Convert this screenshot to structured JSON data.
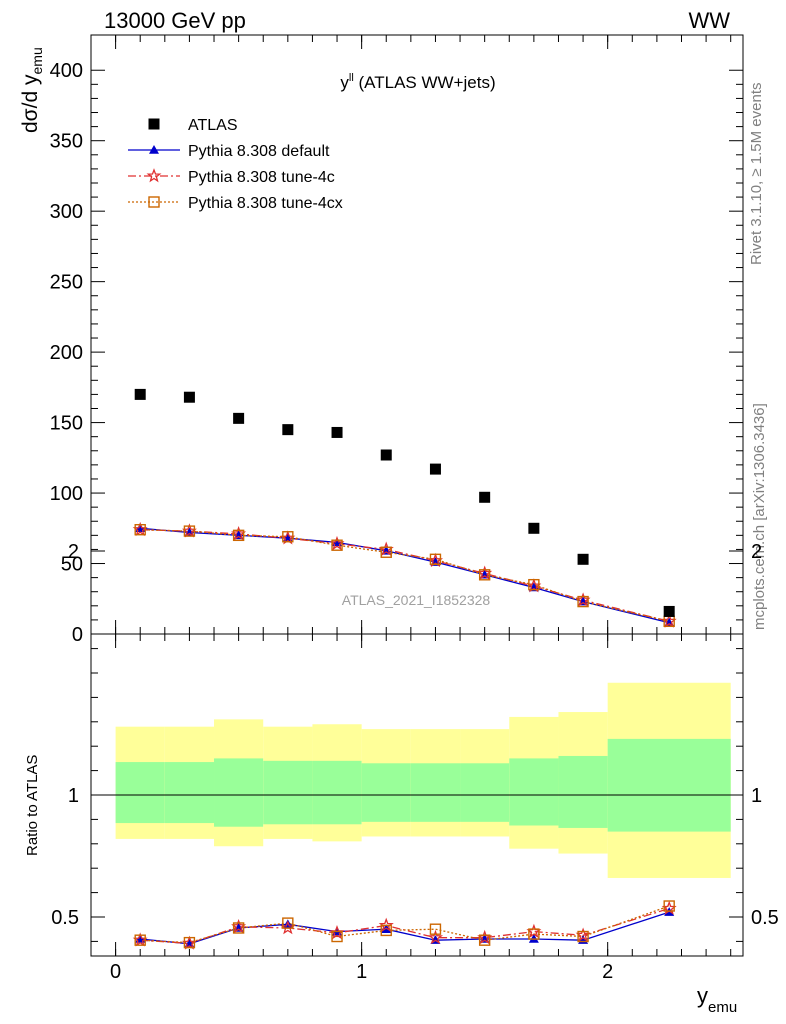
{
  "header": {
    "left": "13000 GeV pp",
    "right": "WW"
  },
  "side": {
    "rivet": "Rivet 3.1.10, ≥ 1.5M events",
    "mcplots": "mcplots.cern.ch [arXiv:1306.3436]"
  },
  "colors": {
    "atlas": "#000000",
    "default": "#0000cc",
    "tune4c": "#e03030",
    "tune4cx": "#cc6600",
    "band_inner": "#99ff99",
    "band_outer": "#ffff99"
  },
  "chart_data": [
    {
      "type": "scatter",
      "title_main": "y",
      "title_sup": "ll",
      "title_rest": " (ATLAS WW+jets)",
      "ylabel_main": "dσ/d y",
      "ylabel_sub": "emu",
      "watermark": "ATLAS_2021_I1852328",
      "xlim": [
        -0.1,
        2.55
      ],
      "ylim": [
        0,
        425
      ],
      "yticks": [
        0,
        50,
        100,
        150,
        200,
        250,
        300,
        350,
        400
      ],
      "bin_edges": [
        0,
        0.2,
        0.4,
        0.6,
        0.8,
        1.0,
        1.2,
        1.4,
        1.6,
        1.8,
        2.0,
        2.5
      ],
      "x": [
        0.1,
        0.3,
        0.5,
        0.7,
        0.9,
        1.1,
        1.3,
        1.5,
        1.7,
        1.9,
        2.25
      ],
      "legend": [
        "ATLAS",
        "Pythia 8.308 default",
        "Pythia 8.308 tune-4c",
        "Pythia 8.308 tune-4cx"
      ],
      "legend_position": "top-left",
      "series": [
        {
          "name": "ATLAS",
          "values": [
            170,
            168,
            153,
            145,
            143,
            127,
            117,
            97,
            75,
            53,
            16
          ]
        },
        {
          "name": "Pythia 8.308 default",
          "values": [
            75,
            72,
            70,
            68,
            65,
            59,
            51,
            42,
            33,
            23,
            8
          ]
        },
        {
          "name": "Pythia 8.308 tune-4c",
          "values": [
            74,
            73,
            71,
            68,
            64,
            60,
            52,
            43,
            34,
            24,
            9
          ]
        },
        {
          "name": "Pythia 8.308 tune-4cx",
          "values": [
            74,
            73,
            70,
            69,
            63,
            58,
            53,
            42,
            35,
            23,
            9
          ]
        }
      ]
    },
    {
      "type": "line",
      "ylabel": "Ratio to ATLAS",
      "xlabel_main": "y",
      "xlabel_sub": "emu",
      "xlim": [
        -0.1,
        2.55
      ],
      "ylim": [
        0.33,
        2.3
      ],
      "xticks": [
        "0",
        "1",
        "2"
      ],
      "xtick_values": [
        0,
        1,
        2
      ],
      "yticks": [
        "0.5",
        "1",
        "2"
      ],
      "ytick_values": [
        0.5,
        1,
        2
      ],
      "band_inner": [
        [
          0.885,
          1.135
        ],
        [
          0.885,
          1.135
        ],
        [
          0.87,
          1.15
        ],
        [
          0.88,
          1.14
        ],
        [
          0.88,
          1.14
        ],
        [
          0.89,
          1.13
        ],
        [
          0.89,
          1.13
        ],
        [
          0.89,
          1.13
        ],
        [
          0.875,
          1.15
        ],
        [
          0.865,
          1.16
        ],
        [
          0.85,
          1.23
        ]
      ],
      "band_outer": [
        [
          0.82,
          1.28
        ],
        [
          0.82,
          1.28
        ],
        [
          0.79,
          1.31
        ],
        [
          0.82,
          1.28
        ],
        [
          0.81,
          1.29
        ],
        [
          0.83,
          1.27
        ],
        [
          0.83,
          1.27
        ],
        [
          0.83,
          1.27
        ],
        [
          0.78,
          1.32
        ],
        [
          0.76,
          1.34
        ],
        [
          0.66,
          1.46
        ]
      ],
      "series": [
        {
          "name": "Pythia 8.308 default",
          "values": [
            0.41,
            0.39,
            0.455,
            0.47,
            0.44,
            0.45,
            0.405,
            0.41,
            0.41,
            0.405,
            0.52
          ]
        },
        {
          "name": "Pythia 8.308 tune-4c",
          "values": [
            0.405,
            0.392,
            0.46,
            0.455,
            0.435,
            0.465,
            0.415,
            0.415,
            0.44,
            0.425,
            0.535
          ]
        },
        {
          "name": "Pythia 8.308 tune-4cx",
          "values": [
            0.405,
            0.395,
            0.455,
            0.475,
            0.42,
            0.445,
            0.45,
            0.405,
            0.43,
            0.42,
            0.545
          ]
        }
      ]
    }
  ]
}
